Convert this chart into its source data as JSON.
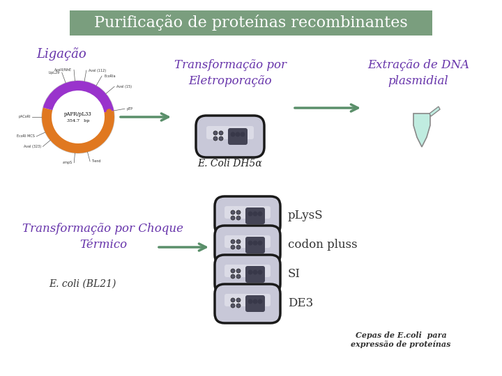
{
  "title": "Purificação de proteínas recombinantes",
  "title_bg": "#7a9e7e",
  "title_color": "white",
  "title_fontsize": 16,
  "bg_color": "white",
  "purple_color": "#6633aa",
  "green_color": "#5a8f6a",
  "dark_text": "#333333",
  "labels": {
    "ligacao": "Ligação",
    "transformacao_eletro": "Transformação por\nEletroporação",
    "extracao": "Extração de DNA\nplasmidial",
    "ecoli_dh5": "E. Coli DH5α",
    "transformacao_choque": "Transformação por Choque\nTérmico",
    "ecoli_bl21": "E. coli (BL21)",
    "pLysS": "pLysS",
    "codon_pluss": "codon pluss",
    "SI": "SI",
    "DE3": "DE3",
    "cepas": "Cepas de E.coli  para\nexpressão de proteínas"
  },
  "plasmid_orange": "#e07820",
  "plasmid_purple": "#9933cc",
  "plasmid_gray": "#cccccc",
  "bact_outer": "#444444",
  "bact_light": "#d8d8d8",
  "bact_silver": "#b8b8c8",
  "tube_color": "#c0ece0"
}
